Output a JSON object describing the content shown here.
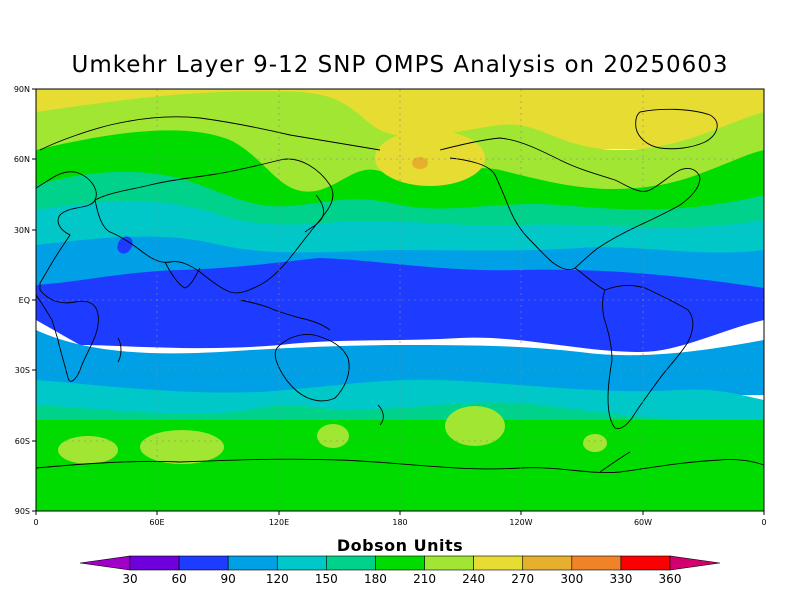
{
  "title": "Umkehr Layer 9-12 SNP OMPS Analysis on 20250603",
  "lat_labels": [
    "90N",
    "60N",
    "30N",
    "EQ",
    "30S",
    "60S",
    "90S"
  ],
  "lon_labels": [
    "0",
    "60E",
    "120E",
    "180",
    "120W",
    "60W",
    "0"
  ],
  "colorbar": {
    "title": "Dobson Units",
    "ticks": [
      "30",
      "60",
      "90",
      "120",
      "150",
      "180",
      "210",
      "240",
      "270",
      "300",
      "330",
      "360"
    ],
    "colors": [
      "#a000c8",
      "#6e00dc",
      "#1e3cff",
      "#00a0e6",
      "#00c8c8",
      "#00d28c",
      "#00dc00",
      "#a0e632",
      "#e6dc32",
      "#e6af2d",
      "#f08228",
      "#fa0000",
      "#d2006e"
    ]
  },
  "map_colors": {
    "band_30": "#00a0e6",
    "band_60": "#1e3cff",
    "band_120": "#00c8c8",
    "band_210": "#00dc00",
    "band_240": "#a0e632",
    "band_270": "#e6dc32",
    "band_300": "#e6af2d",
    "gridline": "#888888",
    "coastline": "#000000"
  }
}
